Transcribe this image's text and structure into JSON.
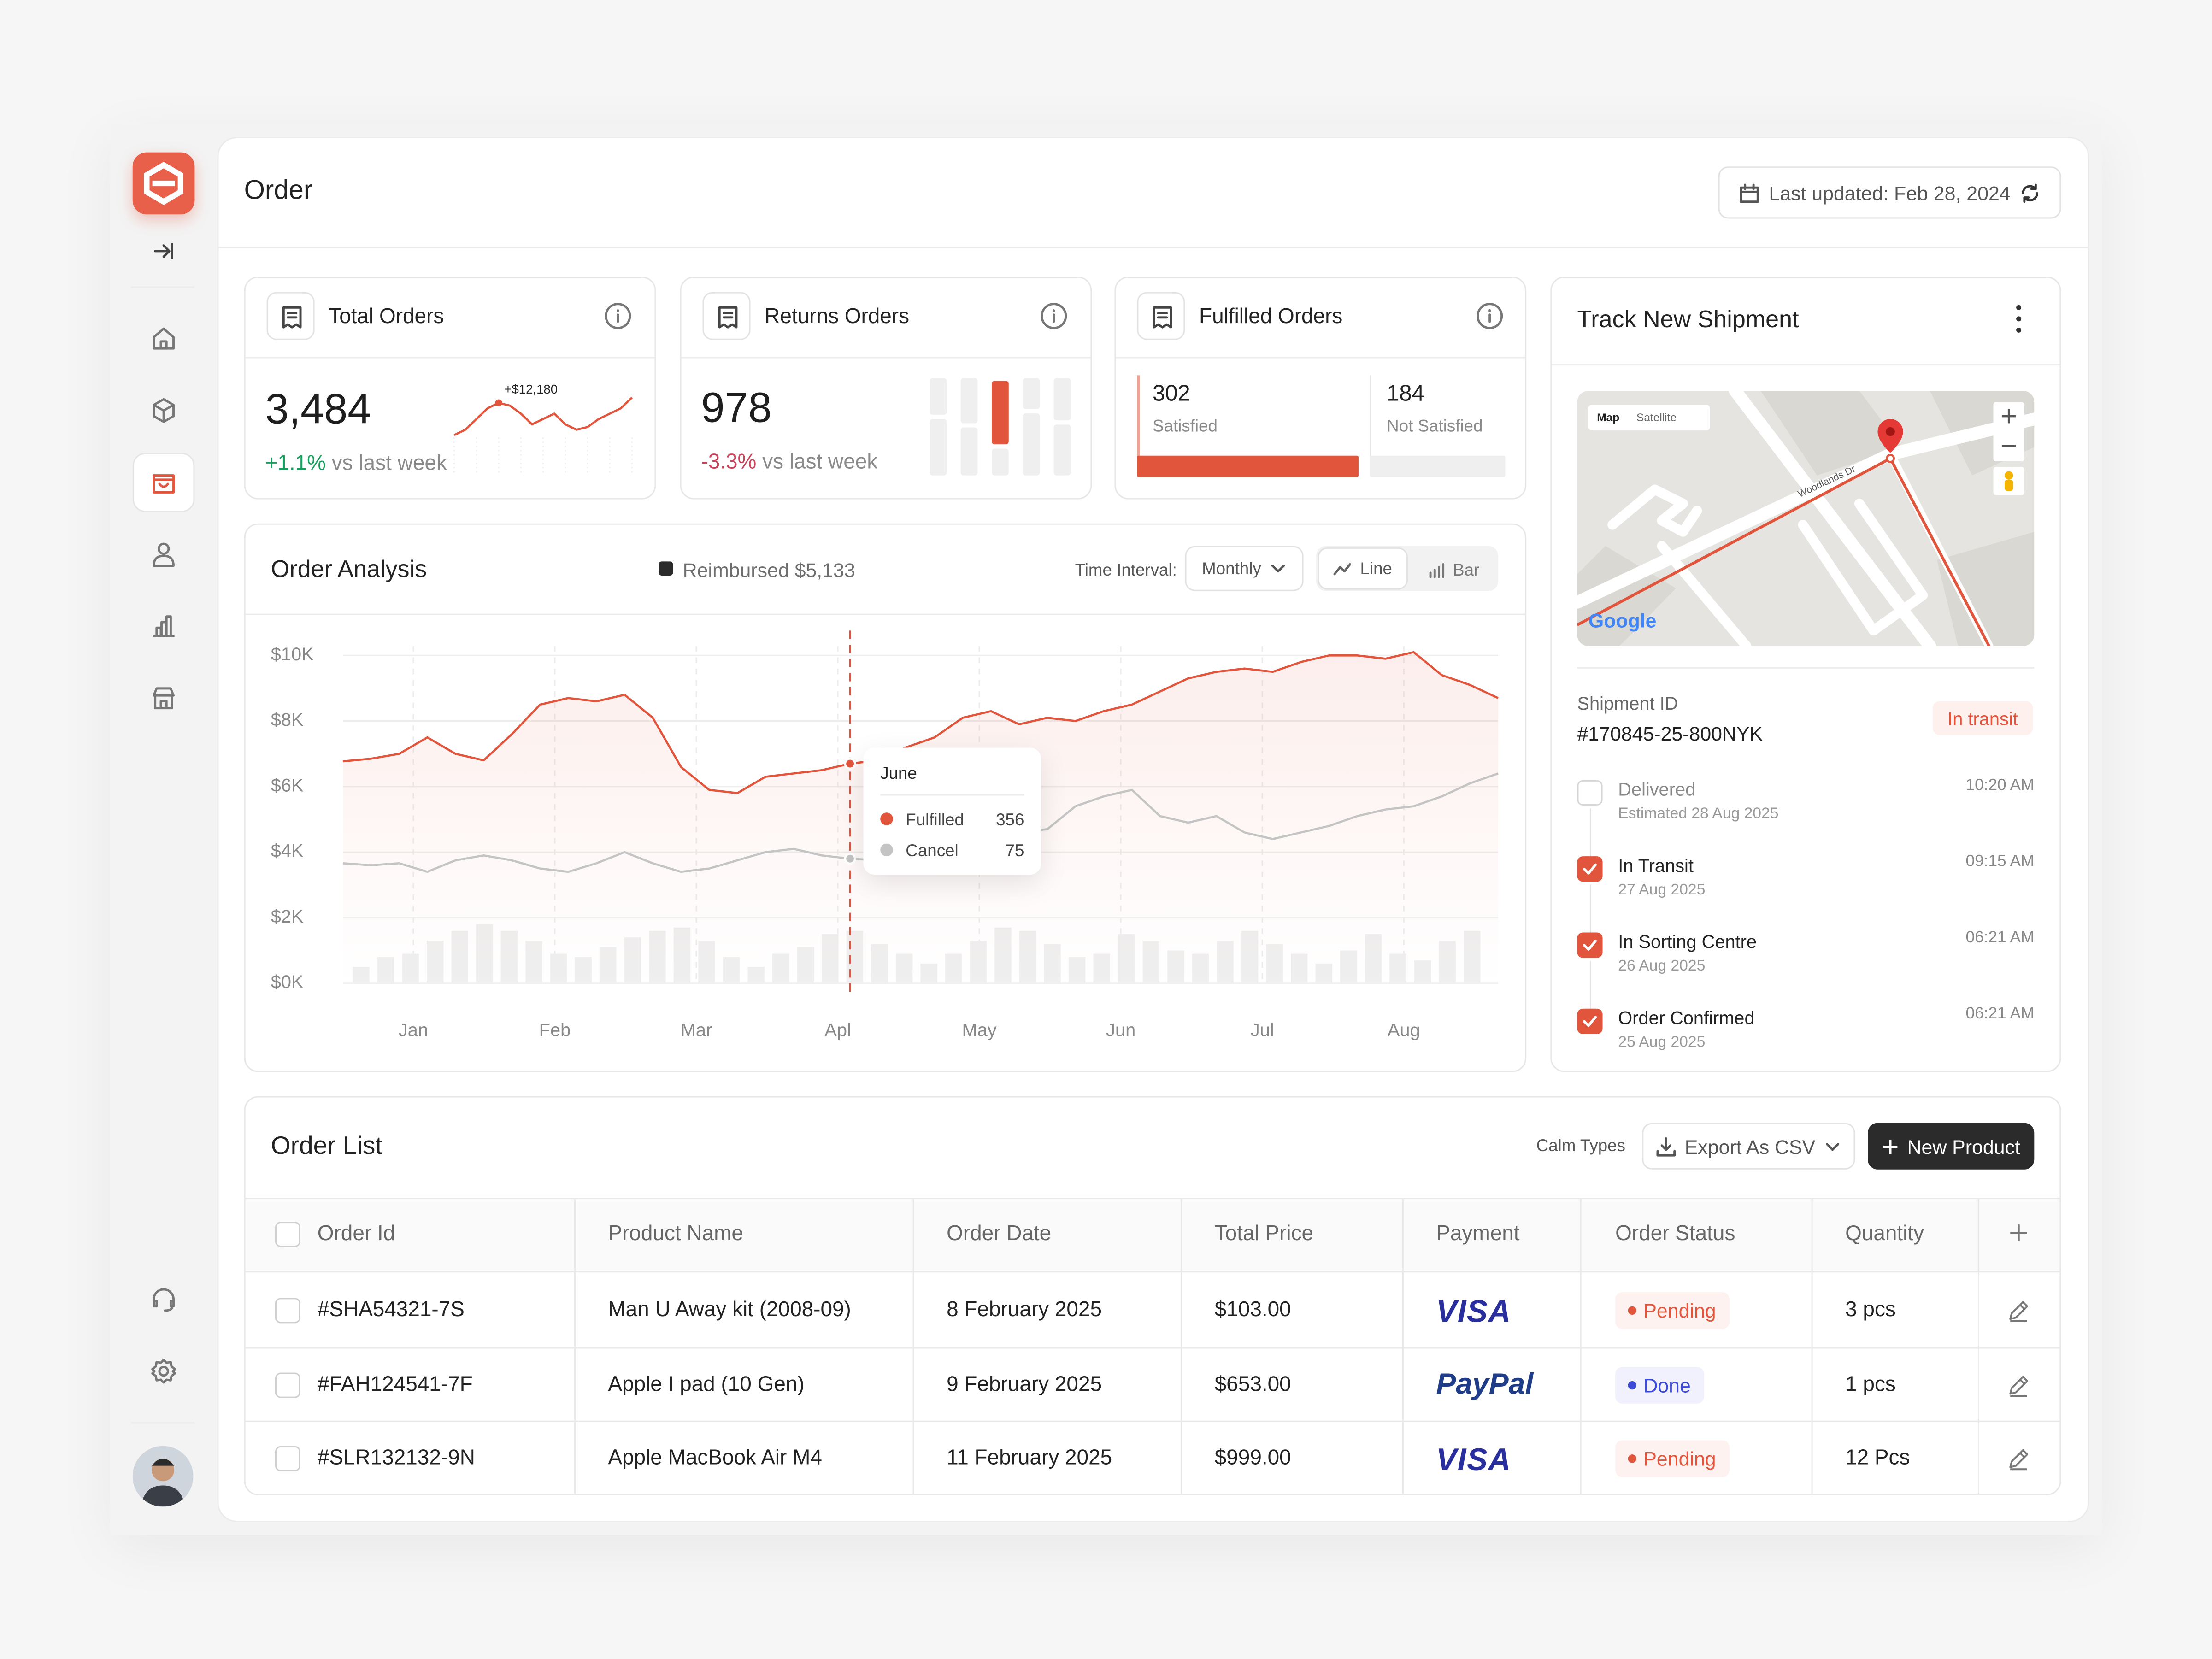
{
  "header": {
    "title": "Order",
    "last_updated": "Last updated: Feb 28, 2024"
  },
  "stats": {
    "total": {
      "title": "Total Orders",
      "value": "3,484",
      "change": "+1.1%",
      "change_note": "vs last week",
      "sparkline": {
        "label": "+$12,180",
        "label_index": 4,
        "color": "#e2553d",
        "ylim": [
          0,
          10
        ],
        "values": [
          2,
          3,
          5,
          7,
          8,
          7.5,
          6,
          4,
          5,
          6,
          4,
          3,
          3.5,
          5,
          6,
          7,
          9
        ]
      }
    },
    "returns": {
      "title": "Returns Orders",
      "value": "978",
      "change": "-3.3%",
      "change_note": "vs last week"
    },
    "fulfilled": {
      "title": "Fulfilled Orders",
      "satisfied": "302",
      "satisfied_label": "Satisfied",
      "not_satisfied": "184",
      "not_satisfied_label": "Not Satisfied"
    }
  },
  "order_analysis": {
    "title": "Order Analysis",
    "legend": "Reimbursed $5,133",
    "interval_label": "Time Interval:",
    "interval": "Monthly",
    "views": [
      "Line",
      "Bar"
    ],
    "chart": {
      "type": "line",
      "categories": [
        "Jan",
        "Feb",
        "Mar",
        "Apl",
        "May",
        "Jun",
        "Jul",
        "Aug"
      ],
      "ylim": [
        0,
        10500
      ],
      "yticks": [
        {
          "value": 0,
          "label": "$0K"
        },
        {
          "value": 2000,
          "label": "$2K"
        },
        {
          "value": 4000,
          "label": "$4K"
        },
        {
          "value": 6000,
          "label": "$6K"
        },
        {
          "value": 8000,
          "label": "$8K"
        },
        {
          "value": 10000,
          "label": "$10K"
        }
      ],
      "grid": true,
      "series": [
        {
          "name": "Fulfilled",
          "color": "#e2553d",
          "values": [
            6770,
            6850,
            7000,
            7500,
            7000,
            6800,
            7600,
            8500,
            8700,
            8600,
            8800,
            8100,
            6600,
            5900,
            5800,
            6300,
            6400,
            6500,
            6700,
            6800,
            7200,
            7500,
            8100,
            8300,
            7900,
            8100,
            8000,
            8300,
            8500,
            8900,
            9300,
            9500,
            9600,
            9500,
            9800,
            10000,
            10000,
            9900,
            10100,
            9400,
            9100,
            8700
          ]
        },
        {
          "name": "Cancel",
          "color": "#c4c4c4",
          "values": [
            3660,
            3600,
            3660,
            3400,
            3750,
            3900,
            3750,
            3500,
            3400,
            3660,
            4000,
            3660,
            3400,
            3500,
            3750,
            4000,
            4100,
            3900,
            3800,
            3750,
            4000,
            4200,
            4400,
            4500,
            4600,
            4700,
            5400,
            5700,
            5900,
            5100,
            4900,
            5100,
            4600,
            4400,
            4600,
            4800,
            5100,
            5300,
            5400,
            5700,
            6100,
            6400
          ]
        }
      ],
      "bars": {
        "color": "#efefef",
        "values": [
          500,
          800,
          900,
          1300,
          1600,
          1800,
          1600,
          1300,
          900,
          800,
          1100,
          1400,
          1600,
          1700,
          1300,
          800,
          500,
          900,
          1100,
          1500,
          1600,
          1200,
          900,
          600,
          900,
          1300,
          1700,
          1600,
          1200,
          800,
          900,
          1500,
          1300,
          1000,
          900,
          1300,
          1600,
          1200,
          900,
          600,
          1000,
          1500,
          900,
          700,
          1300,
          1600
        ]
      },
      "tooltip": {
        "index": 18,
        "title": "June",
        "values": [
          356,
          75
        ]
      }
    }
  },
  "shipment": {
    "title": "Track New Shipment",
    "map": {
      "tabs": [
        "Map",
        "Satellite"
      ],
      "street": "Woodlands Dr",
      "brand": "Google"
    },
    "id_label": "Shipment ID",
    "id": "#170845-25-800NYK",
    "status": "In transit",
    "timeline": [
      {
        "title": "Delivered",
        "date": "Estimated 28 Aug 2025",
        "time": "10:20 AM",
        "done": false
      },
      {
        "title": "In Transit",
        "date": "27 Aug 2025",
        "time": "09:15 AM",
        "done": true
      },
      {
        "title": "In Sorting Centre",
        "date": "26 Aug 2025",
        "time": "06:21 AM",
        "done": true
      },
      {
        "title": "Order Confirmed",
        "date": "25 Aug 2025",
        "time": "06:21 AM",
        "done": true
      }
    ]
  },
  "order_list": {
    "title": "Order List",
    "filter": "Calm Types",
    "export": "Export As CSV",
    "new_button": "New Product",
    "columns": [
      "Order Id",
      "Product Name",
      "Order Date",
      "Total Price",
      "Payment",
      "Order Status",
      "Quantity"
    ],
    "rows": [
      {
        "id": "#SHA54321-7S",
        "product": "Man U Away kit (2008-09)",
        "date": "8 February 2025",
        "price": "$103.00",
        "payment": "VISA",
        "status": "Pending",
        "status_color": "#e2553d",
        "quantity": "3 pcs"
      },
      {
        "id": "#FAH124541-7F",
        "product": "Apple I pad (10 Gen)",
        "date": "9 February 2025",
        "price": "$653.00",
        "payment": "PayPal",
        "status": "Done",
        "status_color": "#3b4bd8",
        "quantity": "1 pcs"
      },
      {
        "id": "#SLR132132-9N",
        "product": "Apple MacBook Air M4",
        "date": "11 February 2025",
        "price": "$999.00",
        "payment": "VISA",
        "status": "Pending",
        "status_color": "#e2553d",
        "quantity": "12 Pcs"
      }
    ]
  }
}
